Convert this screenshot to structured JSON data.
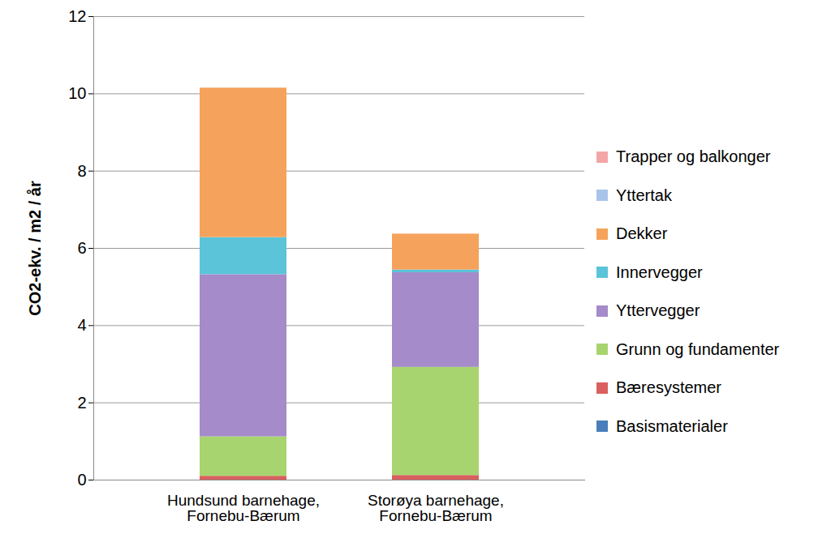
{
  "chart_data": {
    "type": "bar",
    "stacked": true,
    "grid": true,
    "legend": "right",
    "ylabel": "CO2-ekv. / m2 / år",
    "categories": [
      "Hundsund barnehage, Fornebu-Bærum",
      "Storøya barnehage, Fornebu-Bærum"
    ],
    "ylim": [
      0,
      12
    ],
    "yticks": [
      0,
      2,
      4,
      6,
      8,
      10,
      12
    ],
    "series": [
      {
        "name": "Basismaterialer",
        "color": "#4a7ebb",
        "values": [
          0,
          0
        ]
      },
      {
        "name": "Bæresystemer",
        "color": "#d9605e",
        "values": [
          0.1,
          0.12
        ]
      },
      {
        "name": "Grunn og fundamenter",
        "color": "#a8d46f",
        "values": [
          1.02,
          2.8
        ]
      },
      {
        "name": "Yttervegger",
        "color": "#a58bc9",
        "values": [
          4.2,
          2.45
        ]
      },
      {
        "name": "Innervegger",
        "color": "#5bc4d9",
        "values": [
          0.96,
          0.07
        ]
      },
      {
        "name": "Dekker",
        "color": "#f5a35c",
        "values": [
          3.87,
          0.93
        ]
      },
      {
        "name": "Yttertak",
        "color": "#a9c4eb",
        "values": [
          0,
          0
        ]
      },
      {
        "name": "Trapper og balkonger",
        "color": "#f4a6a6",
        "values": [
          0,
          0
        ]
      }
    ]
  }
}
